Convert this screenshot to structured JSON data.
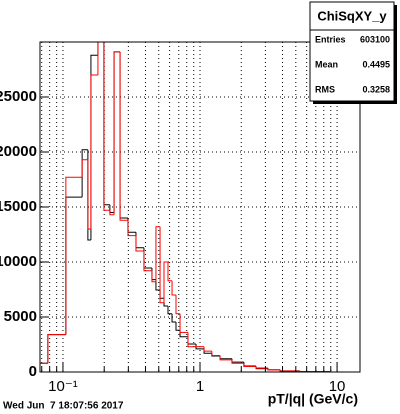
{
  "chart_data": {
    "type": "histogram",
    "xlabel": "pT/|q| (GeV/c)",
    "timestamp": "Wed Jun  7 18:07:56 2017",
    "log_x": true,
    "grid": true,
    "xlim": [
      0.068,
      14.7
    ],
    "ylim": [
      0,
      30000
    ],
    "xticks": [
      {
        "value": 0.1,
        "label": "10⁻¹"
      },
      1,
      10
    ],
    "x_minor_ticks": [
      0.07,
      0.08,
      0.09,
      0.2,
      0.3,
      0.4,
      0.5,
      0.6,
      0.7,
      0.8,
      0.9,
      2,
      3,
      4,
      5,
      6,
      7,
      8,
      9
    ],
    "yticks": [
      0,
      5000,
      10000,
      15000,
      20000,
      25000
    ],
    "bins": [
      0.068,
      0.0776,
      0.105,
      0.138,
      0.152,
      0.16,
      0.18,
      0.199,
      0.22,
      0.236,
      0.261,
      0.298,
      0.341,
      0.39,
      0.446,
      0.477,
      0.511,
      0.546,
      0.584,
      0.625,
      0.668,
      0.715,
      0.817,
      0.935,
      1.07,
      1.22,
      1.4,
      1.71,
      2.09,
      2.56,
      3.13,
      3.84,
      5.37,
      8.89,
      14.7
    ],
    "series": [
      {
        "color": "#000000",
        "values": [
          800,
          3400,
          15900,
          20200,
          12000,
          28800,
          31000,
          15200,
          14500,
          29100,
          14000,
          12700,
          11300,
          9450,
          8400,
          7450,
          6700,
          6000,
          5300,
          4550,
          3800,
          3200,
          2550,
          2100,
          1700,
          1450,
          1200,
          900,
          550,
          350,
          200,
          100,
          30,
          0
        ]
      },
      {
        "color": "#ff0000",
        "values": [
          800,
          3400,
          17700,
          19300,
          13000,
          27000,
          31000,
          14700,
          14300,
          29100,
          13800,
          12400,
          11000,
          9200,
          8200,
          13200,
          6300,
          10000,
          8300,
          7000,
          5300,
          3600,
          2300,
          2300,
          1900,
          1500,
          1100,
          800,
          500,
          300,
          180,
          90,
          20,
          0
        ]
      }
    ],
    "stats": {
      "title": "ChiSqXY_y",
      "rows": [
        [
          "Entries",
          "603100"
        ],
        [
          "Mean",
          "0.4495"
        ],
        [
          "RMS",
          "0.3258"
        ]
      ]
    }
  }
}
